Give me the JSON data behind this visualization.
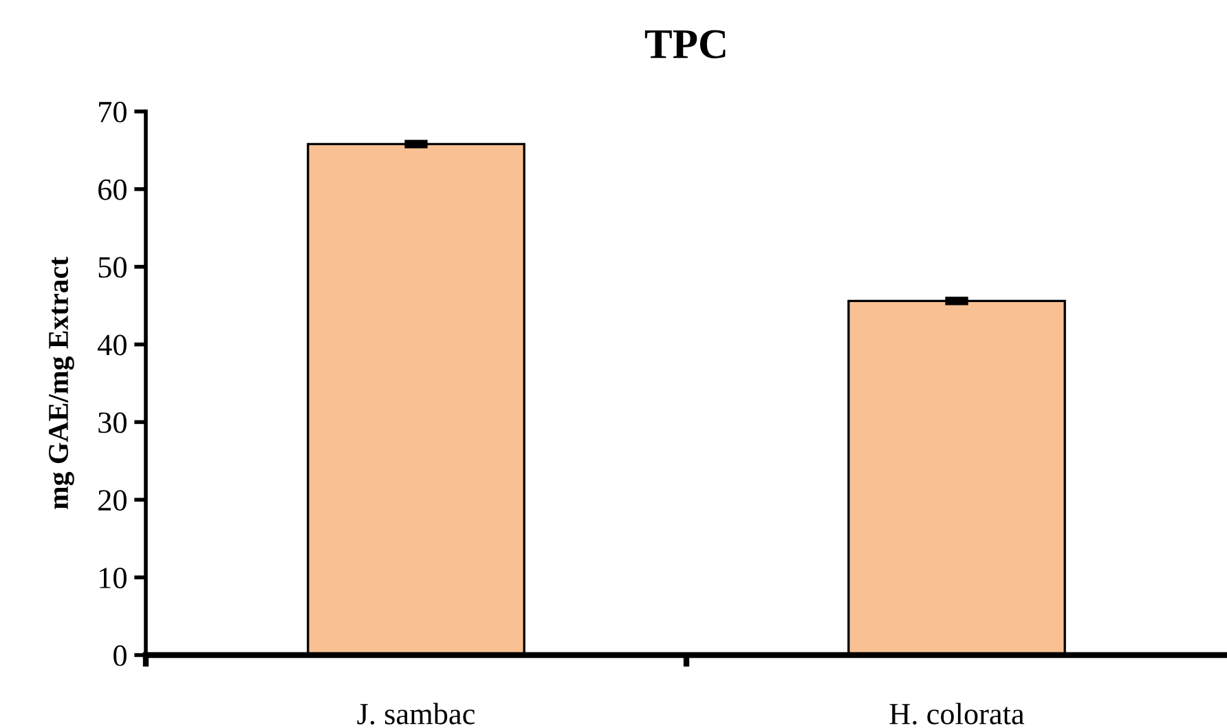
{
  "chart_data": {
    "type": "bar",
    "title": "TPC",
    "ylabel": "mg GAE/mg Extract",
    "categories": [
      "J. sambac",
      "H. colorata"
    ],
    "values": [
      65.8,
      45.6
    ],
    "errors": [
      0.3,
      0.3
    ],
    "color": "#f9c193",
    "ylim": [
      0,
      70
    ],
    "yticks": [
      0,
      10,
      20,
      30,
      40,
      50,
      60,
      70
    ],
    "grid": false,
    "legend": false
  }
}
